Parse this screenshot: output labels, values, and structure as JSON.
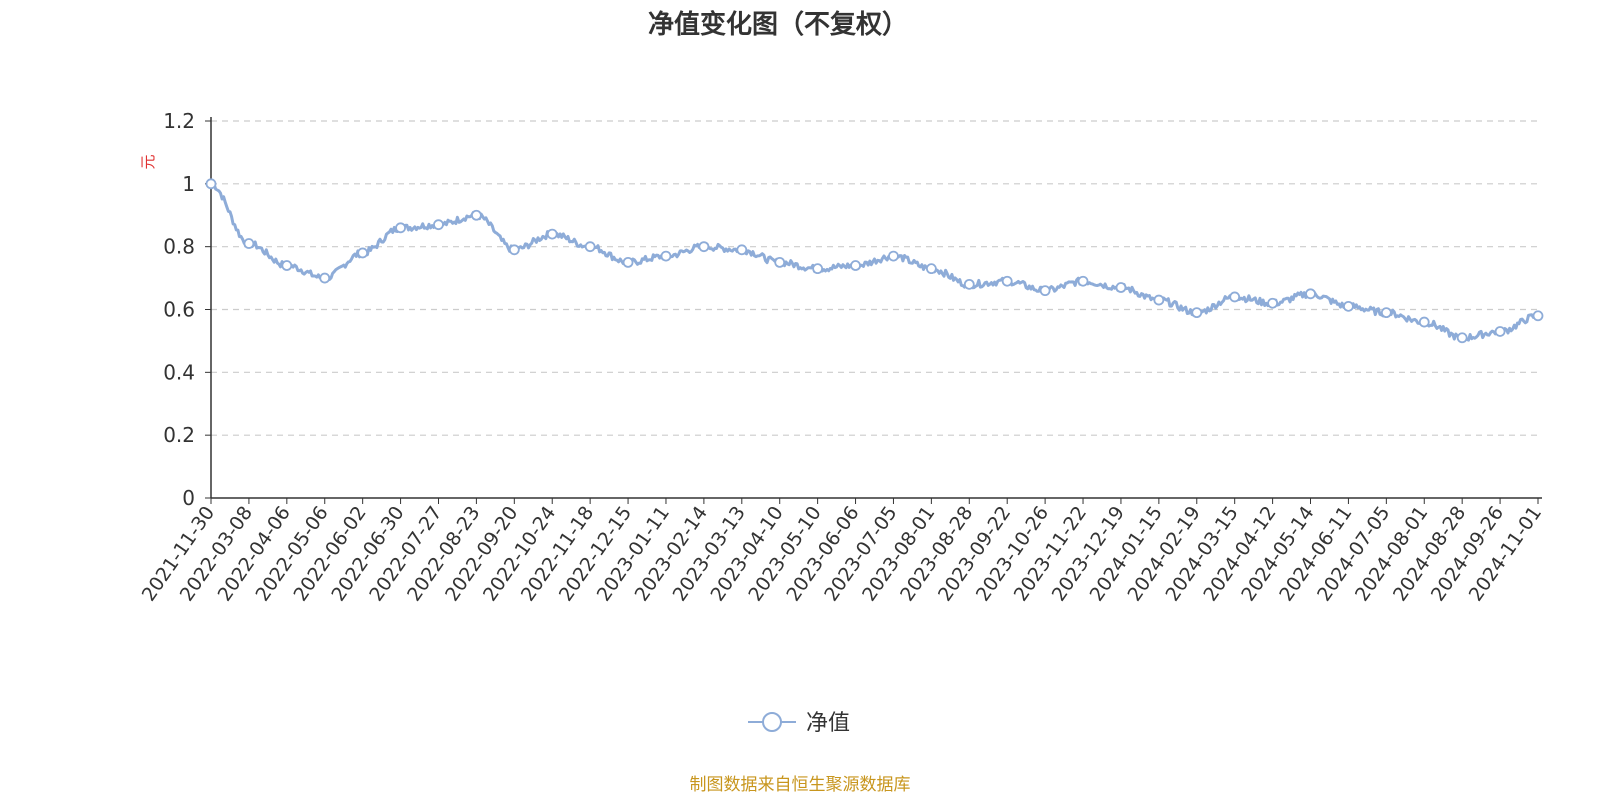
{
  "chart_data": {
    "type": "line",
    "title": "净值变化图（不复权）",
    "ylabel": "元",
    "ylim": [
      0,
      1.2
    ],
    "y_ticks": [
      "0",
      "0.2",
      "0.4",
      "0.6",
      "0.8",
      "1",
      "1.2"
    ],
    "grid": true,
    "legend_position": "bottom-center",
    "x_tick_labels": [
      "2021-11-30",
      "2022-03-08",
      "2022-04-06",
      "2022-05-06",
      "2022-06-02",
      "2022-06-30",
      "2022-07-27",
      "2022-08-23",
      "2022-09-20",
      "2022-10-24",
      "2022-11-18",
      "2022-12-15",
      "2023-01-11",
      "2023-02-14",
      "2023-03-13",
      "2023-04-10",
      "2023-05-10",
      "2023-06-06",
      "2023-07-05",
      "2023-08-01",
      "2023-08-28",
      "2023-09-22",
      "2023-10-26",
      "2023-11-22",
      "2023-12-19",
      "2024-01-15",
      "2024-02-19",
      "2024-03-15",
      "2024-04-12",
      "2024-05-14",
      "2024-06-11",
      "2024-07-05",
      "2024-08-01",
      "2024-08-28",
      "2024-09-26",
      "2024-11-01"
    ],
    "series": [
      {
        "name": "净值",
        "color": "#8eacd8",
        "values": [
          1.0,
          0.81,
          0.74,
          0.7,
          0.78,
          0.86,
          0.87,
          0.9,
          0.79,
          0.84,
          0.8,
          0.75,
          0.77,
          0.8,
          0.79,
          0.75,
          0.73,
          0.74,
          0.77,
          0.73,
          0.68,
          0.69,
          0.66,
          0.69,
          0.67,
          0.63,
          0.59,
          0.64,
          0.62,
          0.65,
          0.61,
          0.59,
          0.56,
          0.51,
          0.53,
          0.58
        ]
      }
    ]
  },
  "legend": {
    "label": "净值"
  },
  "footer": {
    "source": "制图数据来自恒生聚源数据库"
  },
  "colors": {
    "line": "#8eacd8",
    "unit": "#e03030",
    "source": "#c8961e",
    "grid": "#cccccc",
    "axis": "#333333"
  }
}
